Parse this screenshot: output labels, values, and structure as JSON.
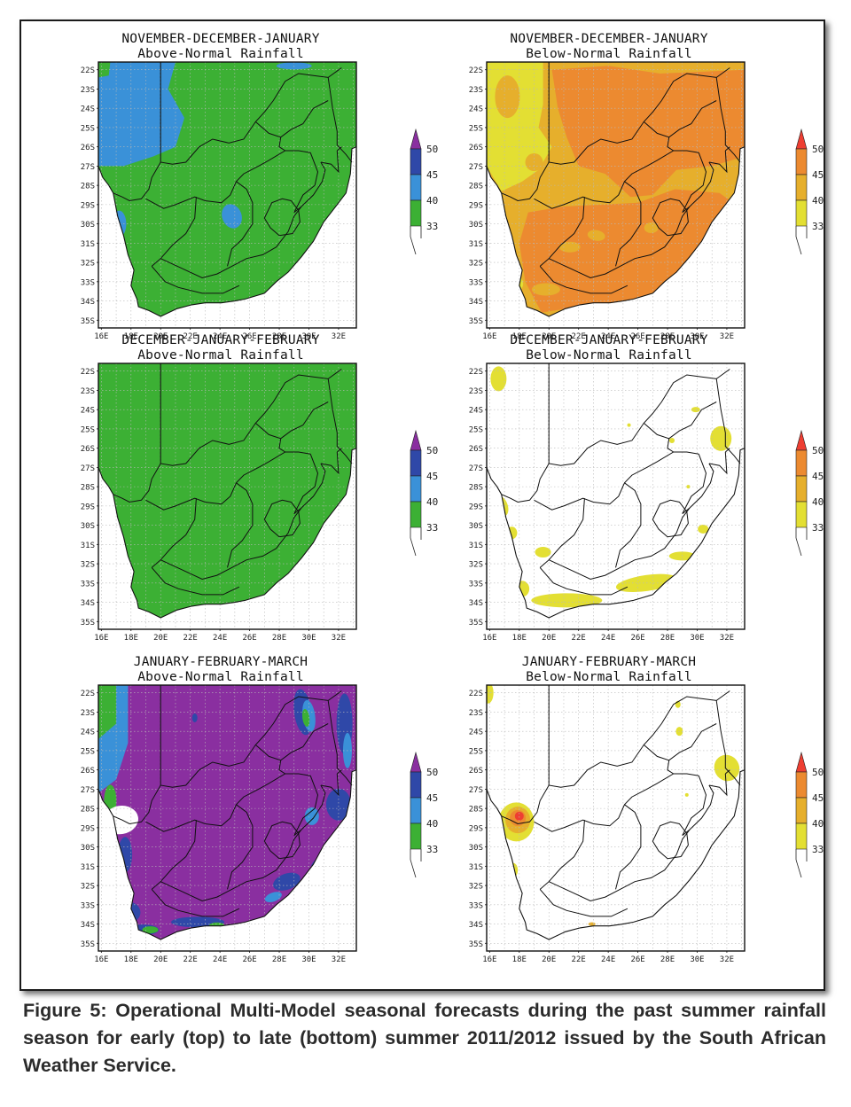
{
  "figure": {
    "caption": "Figure 5: Operational Multi-Model seasonal forecasts during the past summer rainfall season for early (top) to late (bottom) summer 2011/2012 issued by the South African Weather Service."
  },
  "axes": {
    "lat_labels": [
      "22S",
      "23S",
      "24S",
      "25S",
      "26S",
      "27S",
      "28S",
      "29S",
      "30S",
      "31S",
      "32S",
      "33S",
      "34S",
      "35S"
    ],
    "lon_labels": [
      "16E",
      "18E",
      "20E",
      "22E",
      "24E",
      "26E",
      "28E",
      "30E",
      "32E"
    ]
  },
  "colors": {
    "above_scale": [
      "#3cb034",
      "#3a91d8",
      "#2f48a8",
      "#8a2fa0"
    ],
    "below_scale": [
      "#e3df33",
      "#e6af2c",
      "#ec8a30",
      "#ee3e32"
    ],
    "land_bg": "#ffffff",
    "border_line": "#111111"
  },
  "legend": {
    "above": {
      "type": "Above-Normal Rainfall",
      "values": [
        "33",
        "40",
        "45",
        "50"
      ]
    },
    "below": {
      "type": "Below-Normal Rainfall",
      "values": [
        "33",
        "40",
        "45",
        "50"
      ]
    }
  },
  "panels": [
    {
      "season": "NOVEMBER-DECEMBER-JANUARY",
      "category": "Above-Normal Rainfall",
      "scale": "above",
      "dominant_class": "33-40",
      "secondary_class": "40-45 (north-west and central)"
    },
    {
      "season": "NOVEMBER-DECEMBER-JANUARY",
      "category": "Below-Normal Rainfall",
      "scale": "below",
      "dominant_class": "45-50",
      "secondary_class": "40-45 and 33-40 (west)"
    },
    {
      "season": "DECEMBER-JANUARY-FEBRUARY",
      "category": "Above-Normal Rainfall",
      "scale": "above",
      "dominant_class": "33-40",
      "secondary_class": ""
    },
    {
      "season": "DECEMBER-JANUARY-FEBRUARY",
      "category": "Below-Normal Rainfall",
      "scale": "below",
      "dominant_class": "below 33",
      "secondary_class": "33-40 (south coast, west coast, north-east)"
    },
    {
      "season": "JANUARY-FEBRUARY-MARCH",
      "category": "Above-Normal Rainfall",
      "scale": "above",
      "dominant_class": "50+",
      "secondary_class": "45-50, 40-45, 33-40 (margins)"
    },
    {
      "season": "JANUARY-FEBRUARY-MARCH",
      "category": "Below-Normal Rainfall",
      "scale": "below",
      "dominant_class": "below 33",
      "secondary_class": "50+ (north-west), 33-40 (scattered)"
    }
  ]
}
